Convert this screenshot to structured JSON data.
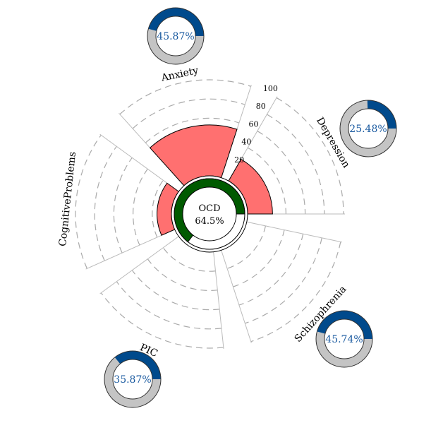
{
  "chart_data": {
    "type": "radial-bar",
    "center": {
      "label": "OCD",
      "value_label": "64.5%",
      "value": 64.5
    },
    "radial_axis": {
      "ticks": [
        20,
        40,
        60,
        80,
        100
      ],
      "tick_labels": [
        "20",
        "40",
        "60",
        "80",
        "100"
      ],
      "range": [
        0,
        100
      ]
    },
    "categories": [
      "Depression",
      "Schizophrenia",
      "PIC",
      "CognitiveProblems",
      "Anxiety"
    ],
    "bar_values": [
      26,
      0,
      0,
      15,
      53
    ],
    "donuts": [
      {
        "category": "Depression",
        "value": 25.48,
        "label": "25.48%"
      },
      {
        "category": "Schizophrenia",
        "value": 45.74,
        "label": "45.74%"
      },
      {
        "category": "PIC",
        "value": 35.87,
        "label": "35.87%"
      },
      {
        "category": "Anxiety",
        "value": 45.87,
        "label": "45.87%"
      }
    ],
    "colors": {
      "bar": "#ff7070",
      "center_ring": "#005a00",
      "donut_fill": "#004a8c",
      "donut_rest": "#c4c4c4",
      "donut_text": "#1a5aa0",
      "grid": "#aaaaaa"
    }
  }
}
